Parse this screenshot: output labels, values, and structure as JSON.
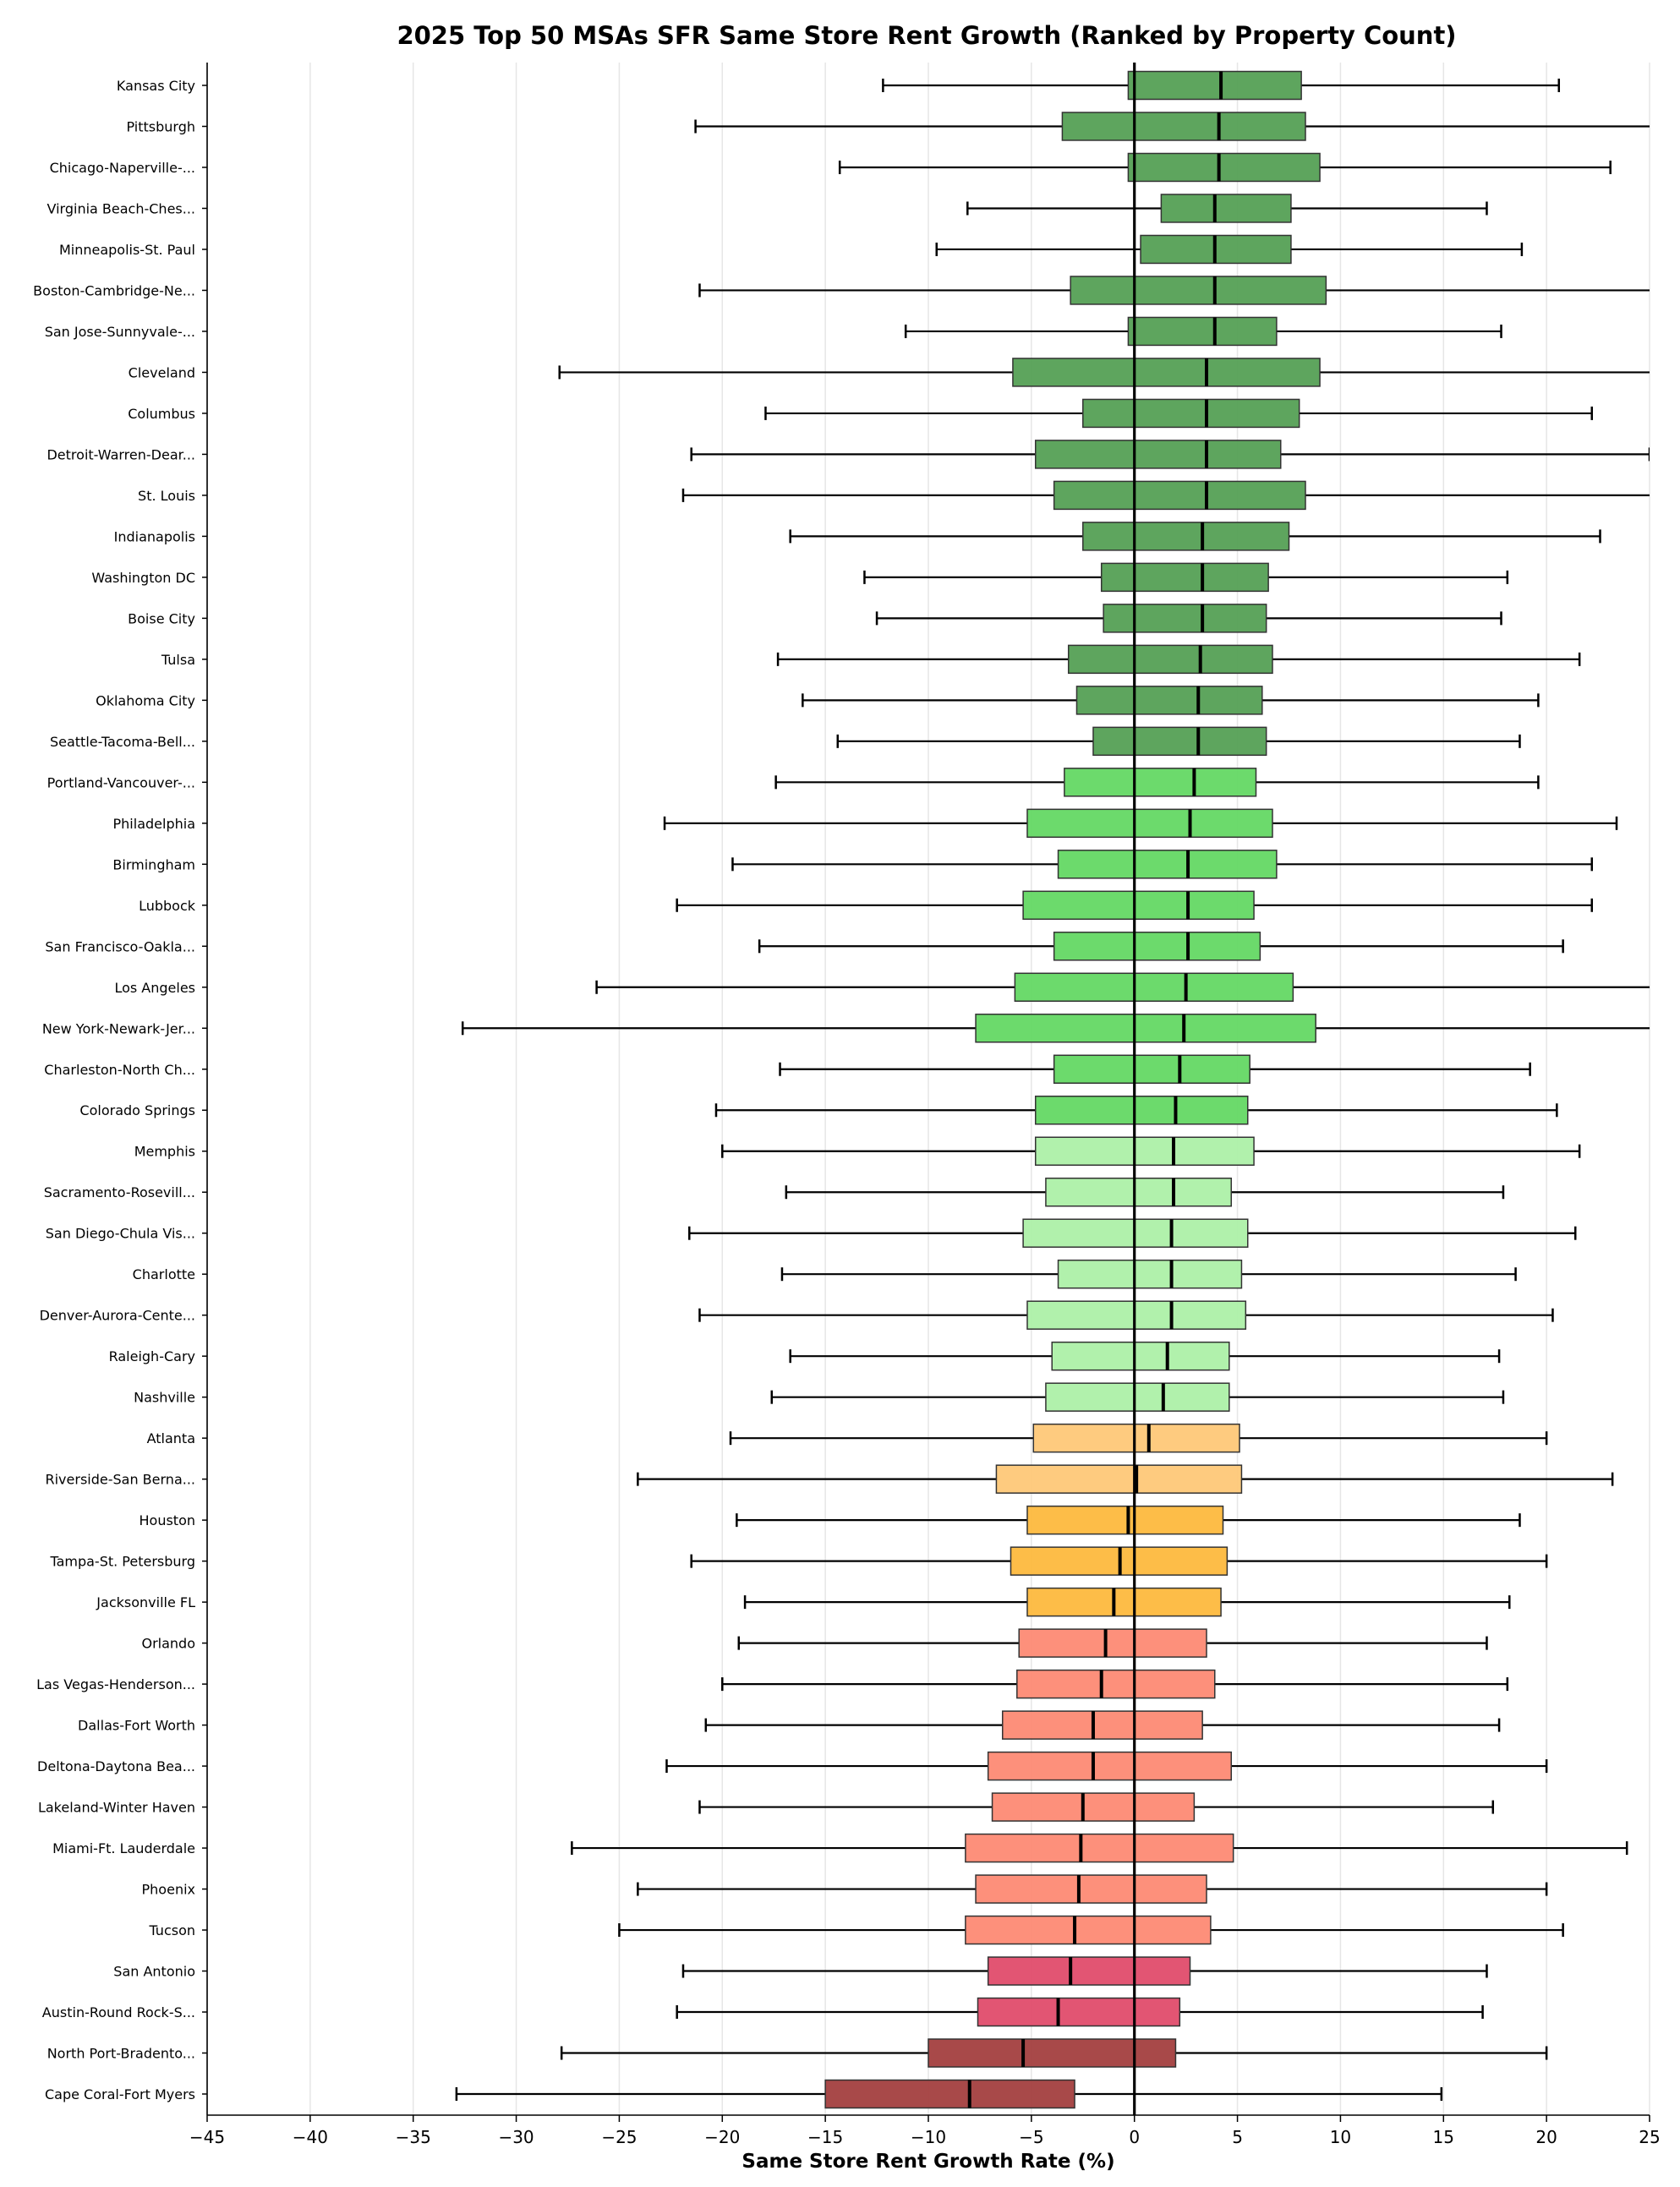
{
  "chart_data": {
    "type": "boxplot-horizontal",
    "title": "2025 Top 50 MSAs SFR Same Store Rent Growth (Ranked by Property Count)",
    "xlabel": "Same Store Rent Growth Rate (%)",
    "ylabel": "",
    "xlim": [
      -45,
      25
    ],
    "xticks": [
      -45,
      -40,
      -35,
      -30,
      -25,
      -20,
      -15,
      -10,
      -5,
      0,
      5,
      10,
      15,
      20,
      25
    ],
    "grid": "vertical",
    "colors": {
      "dark_green": "#55a055",
      "green": "#64d864",
      "light_green": "#adf0a8",
      "light_orange": "#fec878",
      "orange": "#fdb93e",
      "salmon": "#fd8a74",
      "crimson": "#e04c6c",
      "dark_red": "#a33f3f"
    },
    "series_fields": [
      "whisker_low",
      "q1",
      "median",
      "q3",
      "whisker_high",
      "color"
    ],
    "rows": [
      {
        "name": "Kansas City",
        "v": [
          -12.2,
          -0.3,
          4.2,
          8.1,
          20.6
        ],
        "c": "dark_green"
      },
      {
        "name": "Pittsburgh",
        "v": [
          -21.3,
          -3.5,
          4.1,
          8.3,
          26
        ],
        "c": "dark_green"
      },
      {
        "name": "Chicago-Naperville-...",
        "v": [
          -14.3,
          -0.3,
          4.1,
          9.0,
          23.1
        ],
        "c": "dark_green"
      },
      {
        "name": "Virginia Beach-Ches...",
        "v": [
          -8.1,
          1.3,
          3.9,
          7.6,
          17.1
        ],
        "c": "dark_green"
      },
      {
        "name": "Minneapolis-St. Paul",
        "v": [
          -9.6,
          0.3,
          3.9,
          7.6,
          18.8
        ],
        "c": "dark_green"
      },
      {
        "name": "Boston-Cambridge-Ne...",
        "v": [
          -21.1,
          -3.1,
          3.9,
          9.3,
          26
        ],
        "c": "dark_green"
      },
      {
        "name": "San Jose-Sunnyvale-...",
        "v": [
          -11.1,
          -0.3,
          3.9,
          6.9,
          17.8
        ],
        "c": "dark_green"
      },
      {
        "name": "Cleveland",
        "v": [
          -27.9,
          -5.9,
          3.5,
          9.0,
          26
        ],
        "c": "dark_green"
      },
      {
        "name": "Columbus",
        "v": [
          -17.9,
          -2.5,
          3.5,
          8.0,
          22.2
        ],
        "c": "dark_green"
      },
      {
        "name": "Detroit-Warren-Dear...",
        "v": [
          -21.5,
          -4.8,
          3.5,
          7.1,
          25.0
        ],
        "c": "dark_green"
      },
      {
        "name": "St. Louis",
        "v": [
          -21.9,
          -3.9,
          3.5,
          8.3,
          26
        ],
        "c": "dark_green"
      },
      {
        "name": "Indianapolis",
        "v": [
          -16.7,
          -2.5,
          3.3,
          7.5,
          22.6
        ],
        "c": "dark_green"
      },
      {
        "name": "Washington DC",
        "v": [
          -13.1,
          -1.6,
          3.3,
          6.5,
          18.1
        ],
        "c": "dark_green"
      },
      {
        "name": "Boise City",
        "v": [
          -12.5,
          -1.5,
          3.3,
          6.4,
          17.8
        ],
        "c": "dark_green"
      },
      {
        "name": "Tulsa",
        "v": [
          -17.3,
          -3.2,
          3.2,
          6.7,
          21.6
        ],
        "c": "dark_green"
      },
      {
        "name": "Oklahoma City",
        "v": [
          -16.1,
          -2.8,
          3.1,
          6.2,
          19.6
        ],
        "c": "dark_green"
      },
      {
        "name": "Seattle-Tacoma-Bell...",
        "v": [
          -14.4,
          -2.0,
          3.1,
          6.4,
          18.7
        ],
        "c": "dark_green"
      },
      {
        "name": "Portland-Vancouver-...",
        "v": [
          -17.4,
          -3.4,
          2.9,
          5.9,
          19.6
        ],
        "c": "green"
      },
      {
        "name": "Philadelphia",
        "v": [
          -22.8,
          -5.2,
          2.7,
          6.7,
          23.4
        ],
        "c": "green"
      },
      {
        "name": "Birmingham",
        "v": [
          -19.5,
          -3.7,
          2.6,
          6.9,
          22.2
        ],
        "c": "green"
      },
      {
        "name": "Lubbock",
        "v": [
          -22.2,
          -5.4,
          2.6,
          5.8,
          22.2
        ],
        "c": "green"
      },
      {
        "name": "San Francisco-Oakla...",
        "v": [
          -18.2,
          -3.9,
          2.6,
          6.1,
          20.8
        ],
        "c": "green"
      },
      {
        "name": "Los Angeles",
        "v": [
          -26.1,
          -5.8,
          2.5,
          7.7,
          26
        ],
        "c": "green"
      },
      {
        "name": "New York-Newark-Jer...",
        "v": [
          -32.6,
          -7.7,
          2.4,
          8.8,
          26
        ],
        "c": "green"
      },
      {
        "name": "Charleston-North Ch...",
        "v": [
          -17.2,
          -3.9,
          2.2,
          5.6,
          19.2
        ],
        "c": "green"
      },
      {
        "name": "Colorado Springs",
        "v": [
          -20.3,
          -4.8,
          2.0,
          5.5,
          20.5
        ],
        "c": "green"
      },
      {
        "name": "Memphis",
        "v": [
          -20.0,
          -4.8,
          1.9,
          5.8,
          21.6
        ],
        "c": "light_green"
      },
      {
        "name": "Sacramento-Rosevill...",
        "v": [
          -16.9,
          -4.3,
          1.9,
          4.7,
          17.9
        ],
        "c": "light_green"
      },
      {
        "name": "San Diego-Chula Vis...",
        "v": [
          -21.6,
          -5.4,
          1.8,
          5.5,
          21.4
        ],
        "c": "light_green"
      },
      {
        "name": "Charlotte",
        "v": [
          -17.1,
          -3.7,
          1.8,
          5.2,
          18.5
        ],
        "c": "light_green"
      },
      {
        "name": "Denver-Aurora-Cente...",
        "v": [
          -21.1,
          -5.2,
          1.8,
          5.4,
          20.3
        ],
        "c": "light_green"
      },
      {
        "name": "Raleigh-Cary",
        "v": [
          -16.7,
          -4.0,
          1.6,
          4.6,
          17.7
        ],
        "c": "light_green"
      },
      {
        "name": "Nashville",
        "v": [
          -17.6,
          -4.3,
          1.4,
          4.6,
          17.9
        ],
        "c": "light_green"
      },
      {
        "name": "Atlanta",
        "v": [
          -19.6,
          -4.9,
          0.7,
          5.1,
          20.0
        ],
        "c": "light_orange"
      },
      {
        "name": "Riverside-San Berna...",
        "v": [
          -24.1,
          -6.7,
          0.1,
          5.2,
          23.2
        ],
        "c": "light_orange"
      },
      {
        "name": "Houston",
        "v": [
          -19.3,
          -5.2,
          -0.3,
          4.3,
          18.7
        ],
        "c": "orange"
      },
      {
        "name": "Tampa-St. Petersburg",
        "v": [
          -21.5,
          -6.0,
          -0.7,
          4.5,
          20.0
        ],
        "c": "orange"
      },
      {
        "name": "Jacksonville FL",
        "v": [
          -18.9,
          -5.2,
          -1.0,
          4.2,
          18.2
        ],
        "c": "orange"
      },
      {
        "name": "Orlando",
        "v": [
          -19.2,
          -5.6,
          -1.4,
          3.5,
          17.1
        ],
        "c": "salmon"
      },
      {
        "name": "Las Vegas-Henderson...",
        "v": [
          -20.0,
          -5.7,
          -1.6,
          3.9,
          18.1
        ],
        "c": "salmon"
      },
      {
        "name": "Dallas-Fort Worth",
        "v": [
          -20.8,
          -6.4,
          -2.0,
          3.3,
          17.7
        ],
        "c": "salmon"
      },
      {
        "name": "Deltona-Daytona Bea...",
        "v": [
          -22.7,
          -7.1,
          -2.0,
          4.7,
          20.0
        ],
        "c": "salmon"
      },
      {
        "name": "Lakeland-Winter Haven",
        "v": [
          -21.1,
          -6.9,
          -2.5,
          2.9,
          17.4
        ],
        "c": "salmon"
      },
      {
        "name": "Miami-Ft. Lauderdale",
        "v": [
          -27.3,
          -8.2,
          -2.6,
          4.8,
          23.9
        ],
        "c": "salmon"
      },
      {
        "name": "Phoenix",
        "v": [
          -24.1,
          -7.7,
          -2.7,
          3.5,
          20.0
        ],
        "c": "salmon"
      },
      {
        "name": "Tucson",
        "v": [
          -25.0,
          -8.2,
          -2.9,
          3.7,
          20.8
        ],
        "c": "salmon"
      },
      {
        "name": "San Antonio",
        "v": [
          -21.9,
          -7.1,
          -3.1,
          2.7,
          17.1
        ],
        "c": "crimson"
      },
      {
        "name": "Austin-Round Rock-S...",
        "v": [
          -22.2,
          -7.6,
          -3.7,
          2.2,
          16.9
        ],
        "c": "crimson"
      },
      {
        "name": "North Port-Bradento...",
        "v": [
          -27.8,
          -10.0,
          -5.4,
          2.0,
          20.0
        ],
        "c": "dark_red"
      },
      {
        "name": "Cape Coral-Fort Myers",
        "v": [
          -32.9,
          -15.0,
          -8.0,
          -2.9,
          14.9
        ],
        "c": "dark_red"
      }
    ]
  }
}
